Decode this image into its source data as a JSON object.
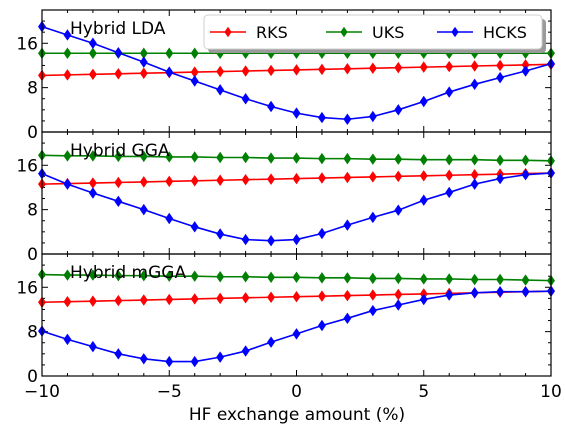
{
  "chart_data": {
    "type": "line",
    "x": [
      -10,
      -9,
      -8,
      -7,
      -6,
      -5,
      -4,
      -3,
      -2,
      -1,
      0,
      1,
      2,
      3,
      4,
      5,
      6,
      7,
      8,
      9,
      10
    ],
    "xlim": [
      -10,
      10
    ],
    "ylim": [
      0,
      22
    ],
    "xticks": [
      -10,
      -5,
      0,
      5,
      10
    ],
    "yticks": [
      0,
      8,
      16
    ],
    "xlabel": "HF exchange amount (%)",
    "legend": {
      "placement": "top-right",
      "entries": [
        "RKS",
        "UKS",
        "HCKS"
      ]
    },
    "colors": {
      "RKS": "#ff0000",
      "UKS": "#008000",
      "HCKS": "#0000ff"
    },
    "marker": "diamond",
    "panels": [
      {
        "title": "Hybrid LDA",
        "series": [
          {
            "name": "RKS",
            "values": [
              10.2,
              10.3,
              10.4,
              10.5,
              10.6,
              10.7,
              10.8,
              10.9,
              11.0,
              11.1,
              11.2,
              11.3,
              11.4,
              11.5,
              11.6,
              11.7,
              11.8,
              11.9,
              12.0,
              12.1,
              12.2
            ]
          },
          {
            "name": "UKS",
            "values": [
              14.2,
              14.2,
              14.2,
              14.2,
              14.2,
              14.2,
              14.2,
              14.2,
              14.2,
              14.2,
              14.2,
              14.2,
              14.2,
              14.2,
              14.2,
              14.2,
              14.2,
              14.2,
              14.2,
              14.2,
              14.2
            ]
          },
          {
            "name": "HCKS",
            "values": [
              19.0,
              17.5,
              16.0,
              14.3,
              12.6,
              10.8,
              9.2,
              7.6,
              6.0,
              4.6,
              3.4,
              2.6,
              2.3,
              2.8,
              4.0,
              5.5,
              7.2,
              8.6,
              9.8,
              11.0,
              12.3
            ]
          }
        ]
      },
      {
        "title": "Hybrid GGA",
        "series": [
          {
            "name": "RKS",
            "values": [
              12.6,
              12.7,
              12.8,
              12.9,
              13.0,
              13.1,
              13.2,
              13.3,
              13.4,
              13.5,
              13.6,
              13.7,
              13.8,
              13.9,
              14.0,
              14.1,
              14.2,
              14.3,
              14.4,
              14.5,
              14.6
            ]
          },
          {
            "name": "UKS",
            "values": [
              17.8,
              17.7,
              17.7,
              17.6,
              17.6,
              17.5,
              17.5,
              17.4,
              17.4,
              17.3,
              17.3,
              17.2,
              17.2,
              17.1,
              17.1,
              17.0,
              17.0,
              17.0,
              16.9,
              16.9,
              16.8
            ]
          },
          {
            "name": "HCKS",
            "values": [
              14.5,
              12.6,
              11.0,
              9.5,
              8.0,
              6.4,
              4.9,
              3.6,
              2.6,
              2.4,
              2.6,
              3.7,
              5.2,
              6.6,
              7.9,
              9.7,
              11.1,
              12.6,
              13.6,
              14.3,
              14.6
            ]
          }
        ]
      },
      {
        "title": "Hybrid mGGA",
        "series": [
          {
            "name": "RKS",
            "values": [
              13.3,
              13.4,
              13.5,
              13.6,
              13.7,
              13.8,
              13.9,
              14.0,
              14.1,
              14.2,
              14.3,
              14.4,
              14.5,
              14.6,
              14.7,
              14.8,
              14.9,
              15.0,
              15.1,
              15.2,
              15.3
            ]
          },
          {
            "name": "UKS",
            "values": [
              18.3,
              18.2,
              18.2,
              18.1,
              18.1,
              18.0,
              18.0,
              17.9,
              17.9,
              17.8,
              17.8,
              17.7,
              17.7,
              17.6,
              17.6,
              17.5,
              17.5,
              17.4,
              17.4,
              17.3,
              17.2
            ]
          },
          {
            "name": "HCKS",
            "values": [
              8.1,
              6.6,
              5.3,
              4.0,
              3.1,
              2.6,
              2.6,
              3.4,
              4.5,
              6.1,
              7.6,
              9.1,
              10.4,
              11.8,
              12.8,
              13.8,
              14.6,
              15.0,
              15.2,
              15.2,
              15.3
            ]
          }
        ]
      }
    ]
  }
}
